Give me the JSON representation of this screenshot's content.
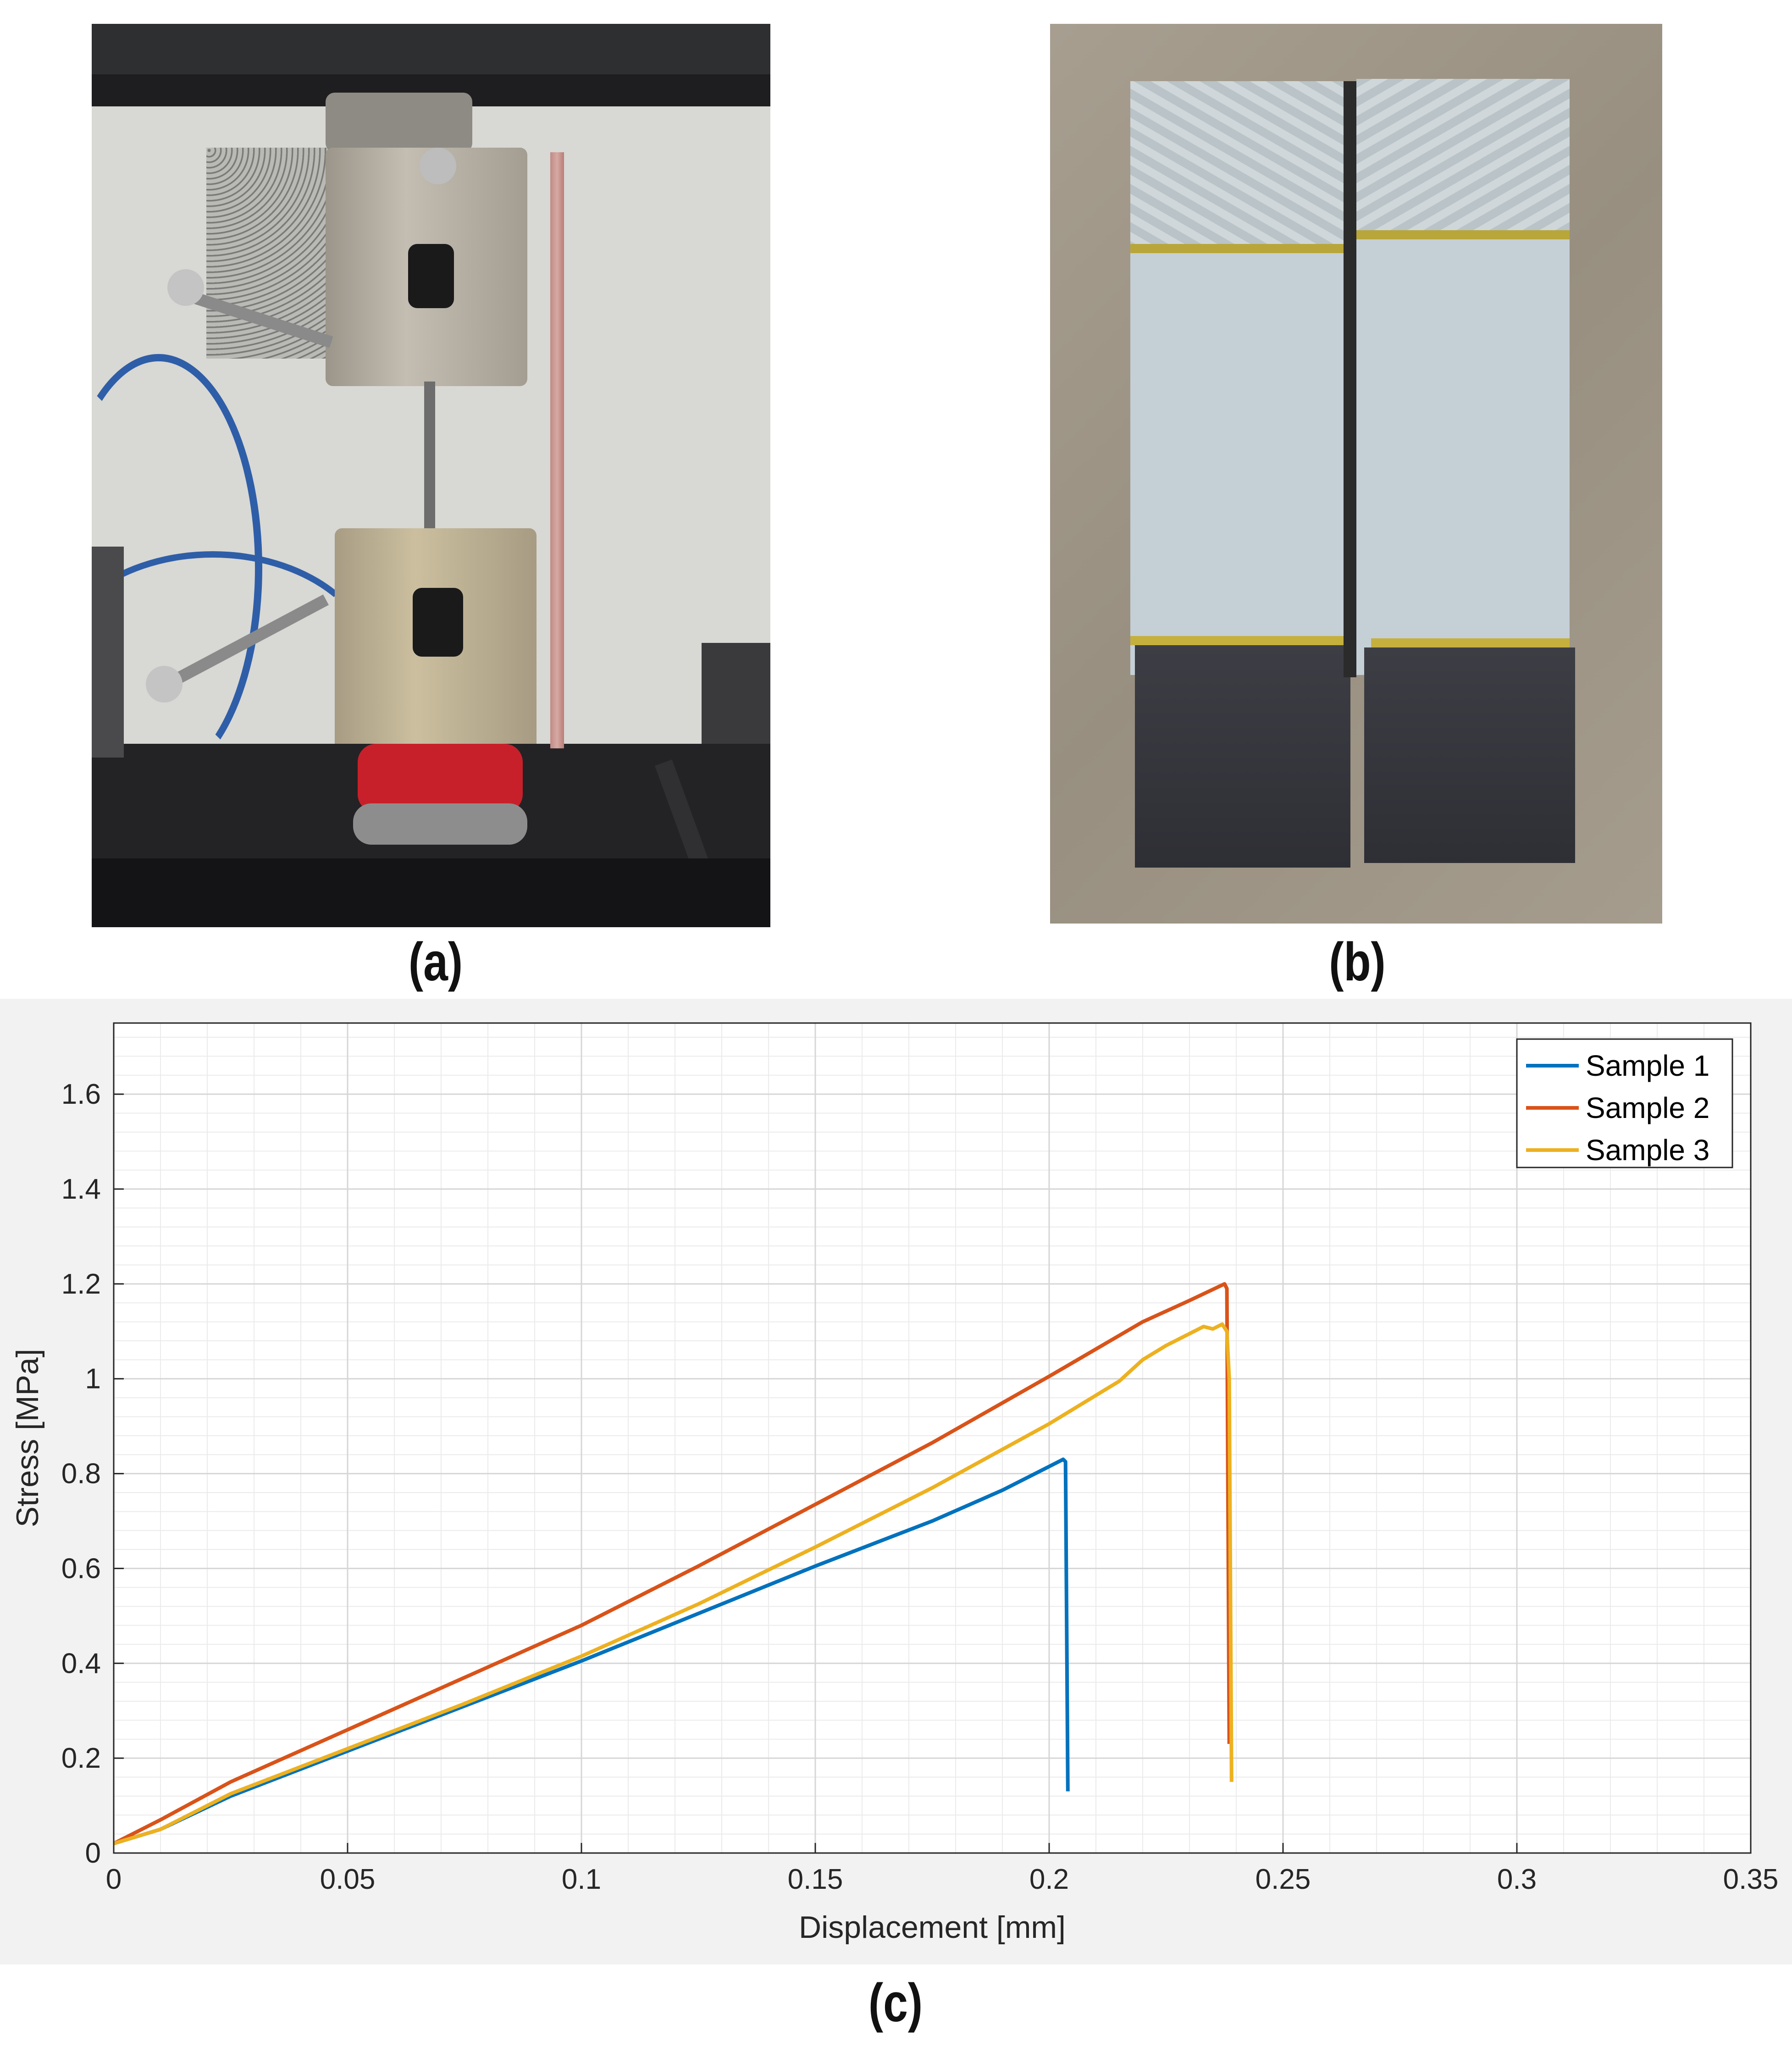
{
  "panels": {
    "a": {
      "label": "(a)"
    },
    "b": {
      "label": "(b)"
    },
    "c": {
      "label": "(c)"
    }
  },
  "chart_data": {
    "type": "line",
    "xlabel": "Displacement [mm]",
    "ylabel": "Stress [MPa]",
    "xlim": [
      0,
      0.35
    ],
    "ylim": [
      0,
      1.75
    ],
    "xticks": [
      0,
      0.05,
      0.1,
      0.15,
      0.2,
      0.25,
      0.3,
      0.35
    ],
    "xtick_labels": [
      "0",
      "0.05",
      "0.1",
      "0.15",
      "0.2",
      "0.25",
      "0.3",
      "0.35"
    ],
    "yticks": [
      0,
      0.2,
      0.4,
      0.6,
      0.8,
      1.0,
      1.2,
      1.4,
      1.6
    ],
    "ytick_labels": [
      "0",
      "0.2",
      "0.4",
      "0.6",
      "0.8",
      "1",
      "1.2",
      "1.4",
      "1.6"
    ],
    "grid": true,
    "minor_grid": true,
    "legend_position": "top-right",
    "series": [
      {
        "name": "Sample 1",
        "color": "#0072BD",
        "points": [
          [
            0,
            0.02
          ],
          [
            0.01,
            0.05
          ],
          [
            0.025,
            0.12
          ],
          [
            0.05,
            0.215
          ],
          [
            0.075,
            0.31
          ],
          [
            0.1,
            0.405
          ],
          [
            0.125,
            0.505
          ],
          [
            0.15,
            0.605
          ],
          [
            0.175,
            0.7
          ],
          [
            0.19,
            0.765
          ],
          [
            0.2,
            0.815
          ],
          [
            0.203,
            0.83
          ],
          [
            0.2035,
            0.825
          ],
          [
            0.204,
            0.13
          ]
        ]
      },
      {
        "name": "Sample 2",
        "color": "#D95319",
        "points": [
          [
            0,
            0.02
          ],
          [
            0.01,
            0.07
          ],
          [
            0.025,
            0.15
          ],
          [
            0.05,
            0.26
          ],
          [
            0.075,
            0.37
          ],
          [
            0.1,
            0.48
          ],
          [
            0.125,
            0.605
          ],
          [
            0.15,
            0.735
          ],
          [
            0.175,
            0.865
          ],
          [
            0.2,
            1.005
          ],
          [
            0.22,
            1.12
          ],
          [
            0.23,
            1.165
          ],
          [
            0.2375,
            1.2
          ],
          [
            0.238,
            1.19
          ],
          [
            0.2385,
            0.23
          ]
        ]
      },
      {
        "name": "Sample 3",
        "color": "#EDB120",
        "points": [
          [
            0,
            0.02
          ],
          [
            0.01,
            0.05
          ],
          [
            0.025,
            0.125
          ],
          [
            0.05,
            0.22
          ],
          [
            0.075,
            0.315
          ],
          [
            0.1,
            0.415
          ],
          [
            0.125,
            0.525
          ],
          [
            0.15,
            0.645
          ],
          [
            0.175,
            0.77
          ],
          [
            0.2,
            0.905
          ],
          [
            0.215,
            0.995
          ],
          [
            0.22,
            1.04
          ],
          [
            0.225,
            1.07
          ],
          [
            0.23,
            1.095
          ],
          [
            0.233,
            1.11
          ],
          [
            0.235,
            1.105
          ],
          [
            0.237,
            1.115
          ],
          [
            0.238,
            1.1
          ],
          [
            0.2385,
            1.0
          ],
          [
            0.239,
            0.15
          ]
        ]
      }
    ]
  }
}
